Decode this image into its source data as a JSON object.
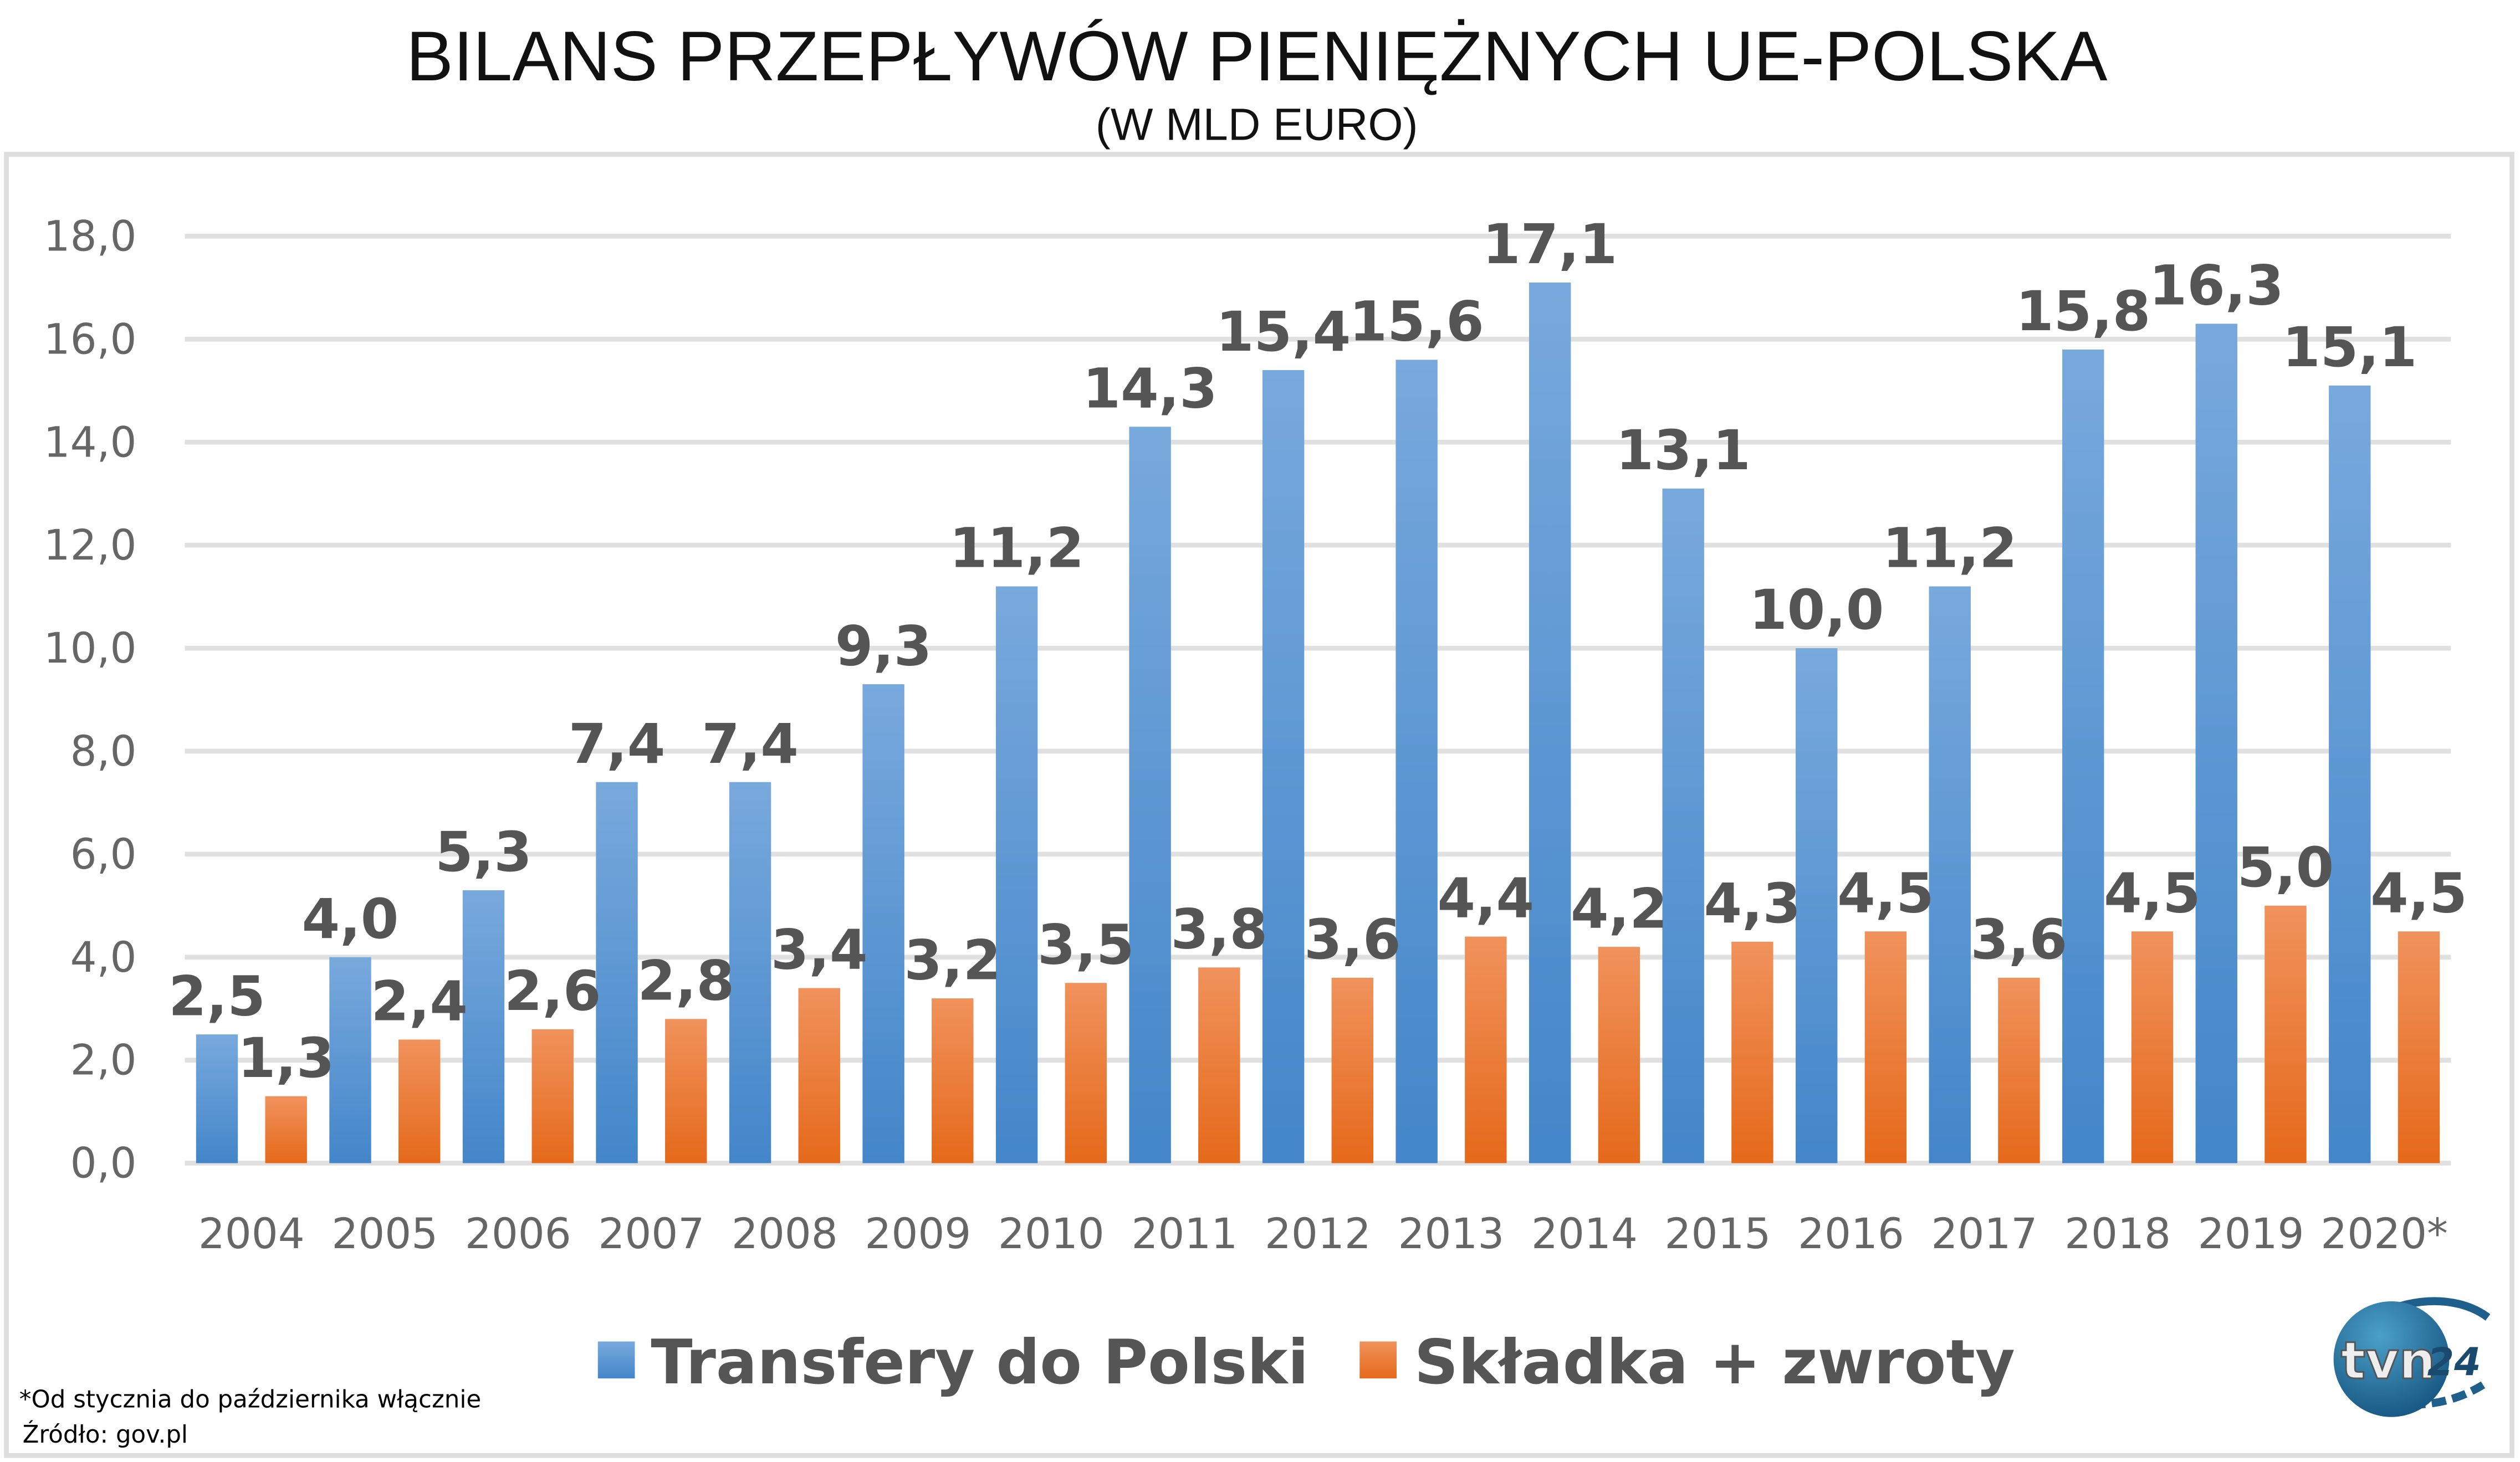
{
  "chart_data": {
    "type": "bar",
    "title": "BILANS PRZEPŁYWÓW PIENIĘŻNYCH UE-POLSKA",
    "subtitle": "(W MLD EURO)",
    "categories": [
      "2004",
      "2005",
      "2006",
      "2007",
      "2008",
      "2009",
      "2010",
      "2011",
      "2012",
      "2013",
      "2014",
      "2015",
      "2016",
      "2017",
      "2018",
      "2019",
      "2020*"
    ],
    "series": [
      {
        "name": "Transfery do Polski",
        "color": "#5b9bd5",
        "values": [
          2.5,
          4.0,
          5.3,
          7.4,
          7.4,
          9.3,
          11.2,
          14.3,
          15.4,
          15.6,
          17.1,
          13.1,
          10.0,
          11.2,
          15.8,
          16.3,
          15.1
        ],
        "labels": [
          "2,5",
          "4,0",
          "5,3",
          "7,4",
          "7,4",
          "9,3",
          "11,2",
          "14,3",
          "15,4",
          "15,6",
          "17,1",
          "13,1",
          "10,0",
          "11,2",
          "15,8",
          "16,3",
          "15,1"
        ]
      },
      {
        "name": "Składka + zwroty",
        "color": "#ed7d31",
        "values": [
          1.3,
          2.4,
          2.6,
          2.8,
          3.4,
          3.2,
          3.5,
          3.8,
          3.6,
          4.4,
          4.2,
          4.3,
          4.5,
          3.6,
          4.5,
          5.0,
          4.5
        ],
        "labels": [
          "1,3",
          "2,4",
          "2,6",
          "2,8",
          "3,4",
          "3,2",
          "3,5",
          "3,8",
          "3,6",
          "4,4",
          "4,2",
          "4,3",
          "4,5",
          "3,6",
          "4,5",
          "5,0",
          "4,5"
        ]
      }
    ],
    "yticks": [
      "0,0",
      "2,0",
      "4,0",
      "6,0",
      "8,0",
      "10,0",
      "12,0",
      "14,0",
      "16,0",
      "18,0"
    ],
    "ylim": [
      0,
      18
    ],
    "grid": true,
    "legend": "bottom"
  },
  "footnote": "*Od stycznia do października włącznie",
  "source": "Źródło: gov.pl",
  "logo": {
    "text": "tvn24",
    "color": "#1f5f8b"
  }
}
